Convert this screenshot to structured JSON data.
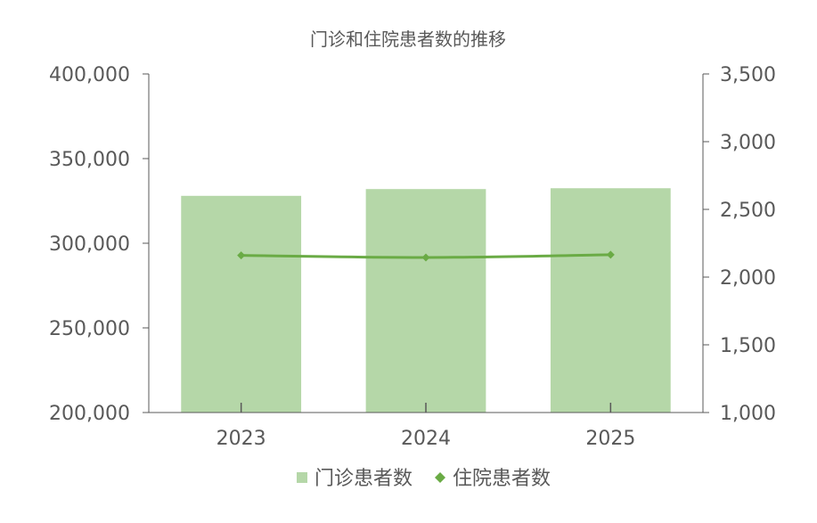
{
  "chart_data": {
    "type": "bar",
    "title": "门诊和住院患者数的推移",
    "categories": [
      "2023",
      "2024",
      "2025"
    ],
    "series": [
      {
        "name": "门诊患者数",
        "type": "bar",
        "axis": "left",
        "values": [
          328000,
          332000,
          332500
        ],
        "color": "#b5d7a8"
      },
      {
        "name": "住院患者数",
        "type": "line",
        "axis": "right",
        "values": [
          2160,
          2145,
          2165
        ],
        "color": "#6aab45"
      }
    ],
    "y_left": {
      "min": 200000,
      "max": 400000,
      "ticks": [
        200000,
        250000,
        300000,
        350000,
        400000
      ],
      "tick_labels": [
        "200,000",
        "250,000",
        "300,000",
        "350,000",
        "400,000"
      ]
    },
    "y_right": {
      "min": 1000,
      "max": 3500,
      "ticks": [
        1000,
        1500,
        2000,
        2500,
        3000,
        3500
      ],
      "tick_labels": [
        "1,000",
        "1,500",
        "2,000",
        "2,500",
        "3,000",
        "3,500"
      ]
    },
    "grid": false,
    "legend_position": "bottom",
    "axis_color": "#595959"
  }
}
